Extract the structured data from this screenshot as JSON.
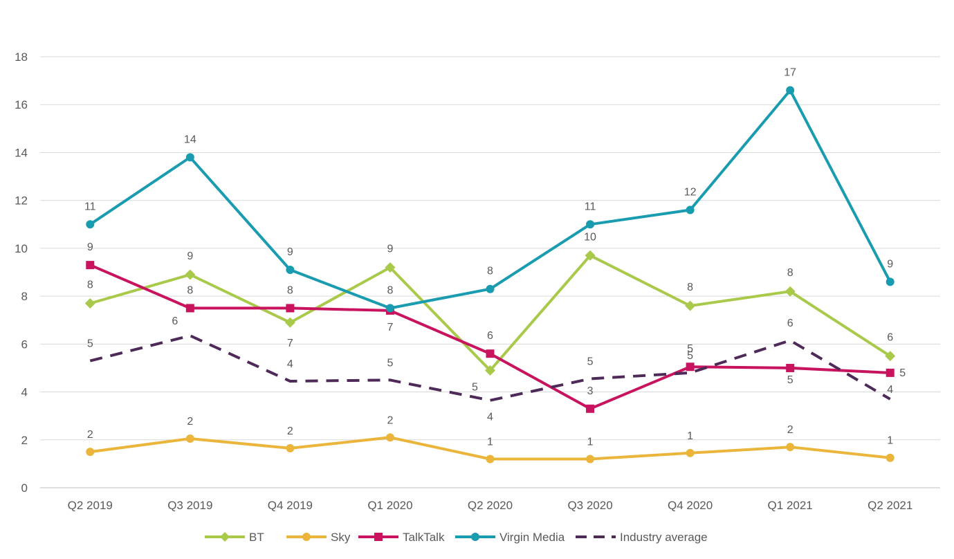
{
  "chart_data": {
    "type": "line",
    "title": "",
    "xlabel": "",
    "ylabel": "",
    "categories": [
      "Q2 2019",
      "Q3 2019",
      "Q4 2019",
      "Q1 2020",
      "Q2 2020",
      "Q3 2020",
      "Q4 2020",
      "Q1 2021",
      "Q2 2021"
    ],
    "ylim": [
      0,
      18
    ],
    "yticks": [
      0,
      2,
      4,
      6,
      8,
      10,
      12,
      14,
      16,
      18
    ],
    "grid": "horizontal",
    "legend_position": "bottom",
    "series": [
      {
        "name": "BT",
        "color": "#a9c94a",
        "marker": "diamond",
        "dash": false,
        "values": [
          7.7,
          8.9,
          6.9,
          9.2,
          4.9,
          9.7,
          7.6,
          8.2,
          5.5
        ],
        "labels": [
          "8",
          "9",
          "7",
          "9",
          "5",
          "10",
          "8",
          "8",
          "6"
        ]
      },
      {
        "name": "Sky",
        "color": "#eab53a",
        "marker": "circle",
        "dash": false,
        "values": [
          1.5,
          2.05,
          1.65,
          2.1,
          1.2,
          1.2,
          1.45,
          1.7,
          1.25
        ],
        "labels": [
          "2",
          "2",
          "2",
          "2",
          "1",
          "1",
          "1",
          "2",
          "1"
        ]
      },
      {
        "name": "TalkTalk",
        "color": "#c8145e",
        "marker": "square",
        "dash": false,
        "values": [
          9.3,
          7.5,
          7.5,
          7.4,
          5.6,
          3.3,
          5.05,
          5.0,
          4.8
        ],
        "labels": [
          "9",
          "8",
          "8",
          "7",
          "6",
          "3",
          "5",
          "5",
          "5"
        ]
      },
      {
        "name": "Virgin Media",
        "color": "#1a9cb0",
        "marker": "circle",
        "dash": false,
        "values": [
          11.0,
          13.8,
          9.1,
          7.5,
          8.3,
          11.0,
          11.6,
          16.6,
          8.6
        ],
        "labels": [
          "11",
          "14",
          "9",
          "8",
          "8",
          "11",
          "12",
          "17",
          "9"
        ]
      },
      {
        "name": "Industry average",
        "color": "#4e2a58",
        "marker": "none",
        "dash": true,
        "values": [
          5.3,
          6.35,
          4.45,
          4.5,
          3.65,
          4.55,
          4.8,
          6.15,
          3.7
        ],
        "labels": [
          "5",
          "6",
          "4",
          "5",
          "4",
          "5",
          "5",
          "6",
          "4"
        ]
      }
    ]
  }
}
